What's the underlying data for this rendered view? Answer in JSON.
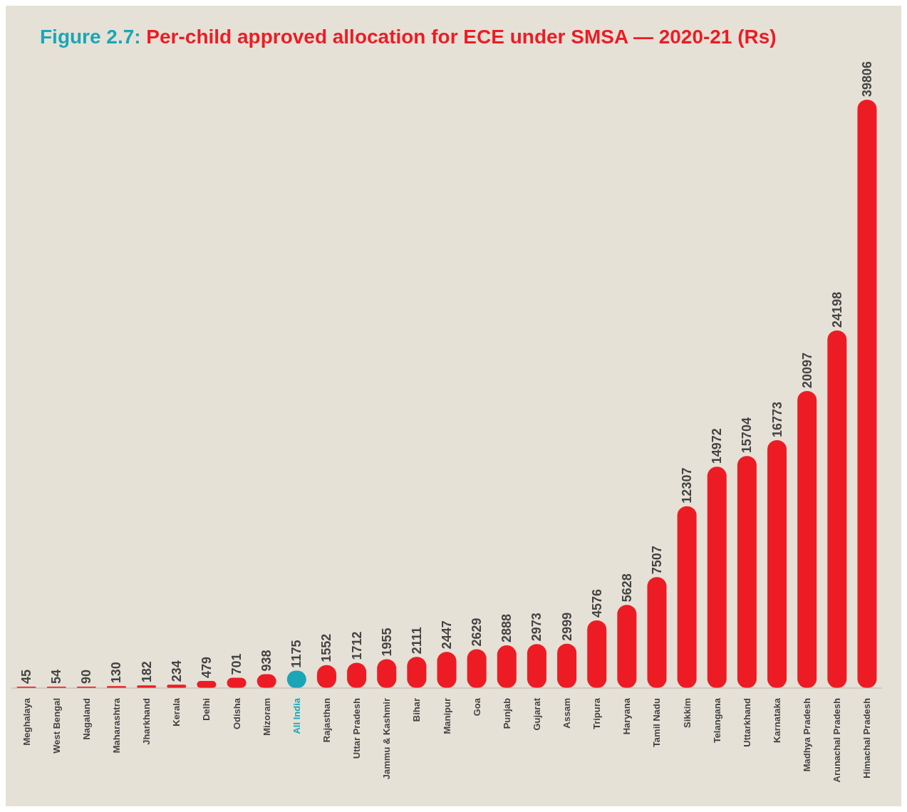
{
  "chart_data": {
    "type": "bar",
    "title": "Figure 2.7: Per-child approved allocation for ECE under SMSA — 2020-21 (Rs)",
    "categories": [
      "Meghalaya",
      "West Bengal",
      "Nagaland",
      "Maharashtra",
      "Jharkhand",
      "Kerala",
      "Delhi",
      "Odisha",
      "Mizoram",
      "All India",
      "Rajasthan",
      "Uttar Pradesh",
      "Jammu & Kashmir",
      "Bihar",
      "Manipur",
      "Goa",
      "Punjab",
      "Gujarat",
      "Assam",
      "Tripura",
      "Haryana",
      "Tamil Nadu",
      "Sikkim",
      "Telangana",
      "Uttarkhand",
      "Karnataka",
      "Madhya Pradesh",
      "Arunachal Pradesh",
      "Himachal Pradesh"
    ],
    "values": [
      45,
      54,
      90,
      130,
      182,
      234,
      479,
      701,
      938,
      1175,
      1552,
      1712,
      1955,
      2111,
      2447,
      2629,
      2888,
      2973,
      2999,
      4576,
      5628,
      7507,
      12307,
      14972,
      15704,
      16773,
      20097,
      24198,
      39806
    ],
    "colors": [
      "#ed1c24",
      "#ed1c24",
      "#ed1c24",
      "#ed1c24",
      "#ed1c24",
      "#ed1c24",
      "#ed1c24",
      "#ed1c24",
      "#ed1c24",
      "#1aa6b7",
      "#ed1c24",
      "#ed1c24",
      "#ed1c24",
      "#ed1c24",
      "#ed1c24",
      "#ed1c24",
      "#ed1c24",
      "#ed1c24",
      "#ed1c24",
      "#ed1c24",
      "#ed1c24",
      "#ed1c24",
      "#ed1c24",
      "#ed1c24",
      "#ed1c24",
      "#ed1c24",
      "#ed1c24",
      "#ed1c24",
      "#ed1c24"
    ],
    "ylim": [
      0,
      40000
    ],
    "data_labels": true,
    "tick_labels": "x"
  }
}
